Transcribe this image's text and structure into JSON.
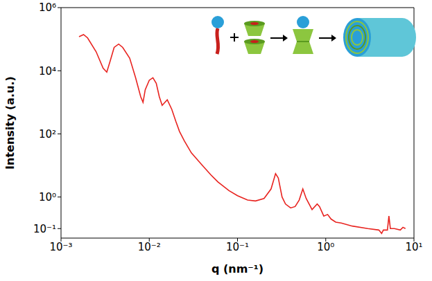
{
  "chart_data": {
    "type": "line",
    "x_label": "q (nm⁻¹)",
    "y_label": "Intensity (a.u.)",
    "log": true,
    "grid": false,
    "color": "#e8231f",
    "line_style": "solid",
    "xlim": [
      0.001,
      10
    ],
    "ylim": [
      0.05,
      1000000
    ],
    "xticks": [
      {
        "value": 0.001,
        "label": "10⁻³"
      },
      {
        "value": 0.01,
        "label": "10⁻²"
      },
      {
        "value": 0.1,
        "label": "10⁻¹"
      },
      {
        "value": 1,
        "label": "10⁰"
      },
      {
        "value": 10,
        "label": "10¹"
      }
    ],
    "yticks": [
      {
        "value": 0.1,
        "label": "10⁻¹"
      },
      {
        "value": 1,
        "label": "10⁰"
      },
      {
        "value": 100,
        "label": "10²"
      },
      {
        "value": 10000,
        "label": "10⁴"
      },
      {
        "value": 1000000,
        "label": "10⁶"
      }
    ],
    "x": [
      0.0016,
      0.0018,
      0.002,
      0.0025,
      0.003,
      0.0033,
      0.0036,
      0.004,
      0.0045,
      0.005,
      0.006,
      0.007,
      0.008,
      0.0085,
      0.009,
      0.01,
      0.011,
      0.012,
      0.013,
      0.014,
      0.016,
      0.018,
      0.02,
      0.022,
      0.025,
      0.03,
      0.04,
      0.05,
      0.06,
      0.08,
      0.1,
      0.13,
      0.16,
      0.2,
      0.24,
      0.27,
      0.29,
      0.32,
      0.35,
      0.4,
      0.45,
      0.5,
      0.55,
      0.6,
      0.7,
      0.8,
      0.85,
      0.95,
      1.05,
      1.15,
      1.3,
      1.5,
      2,
      3,
      4,
      4.3,
      4.5,
      5,
      5.2,
      5.4,
      6,
      7,
      7.5,
      8
    ],
    "values": [
      120000,
      140000,
      110000,
      40000,
      12000,
      9000,
      20000,
      55000,
      70000,
      55000,
      25000,
      6000,
      1500,
      1000,
      2500,
      5000,
      6000,
      4000,
      1500,
      800,
      1200,
      600,
      250,
      120,
      60,
      25,
      10,
      5,
      3,
      1.6,
      1.1,
      0.8,
      0.75,
      0.9,
      1.8,
      5.5,
      4,
      1,
      0.6,
      0.45,
      0.5,
      0.8,
      1.8,
      0.9,
      0.4,
      0.6,
      0.5,
      0.25,
      0.28,
      0.2,
      0.16,
      0.15,
      0.12,
      0.1,
      0.09,
      0.07,
      0.09,
      0.09,
      0.25,
      0.1,
      0.1,
      0.09,
      0.11,
      0.1
    ]
  }
}
